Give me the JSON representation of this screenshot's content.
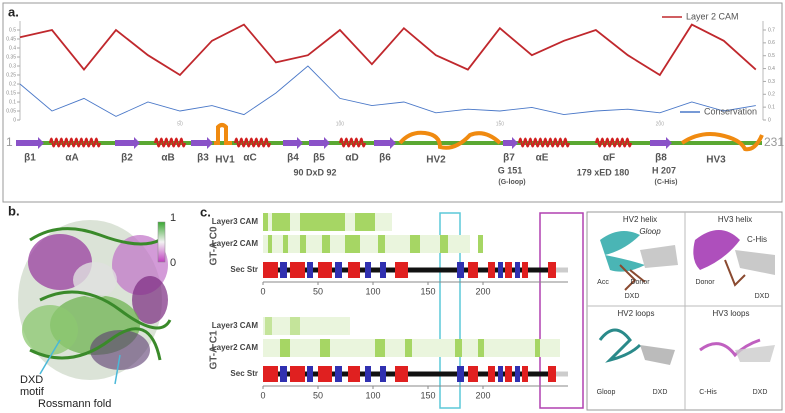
{
  "chart_data": [
    {
      "type": "line",
      "panel_label": "a.",
      "x": [
        0,
        10,
        20,
        30,
        40,
        50,
        60,
        70,
        80,
        90,
        100,
        110,
        120,
        130,
        140,
        150,
        160,
        170,
        180,
        190,
        200,
        210,
        220,
        230
      ],
      "xlim": [
        0,
        231
      ],
      "xticks": [
        50,
        100,
        150,
        200
      ],
      "ylim": [
        0,
        0.55
      ],
      "yticks": [
        0,
        0.05,
        0.1,
        0.15,
        0.2,
        0.25,
        0.3,
        0.35,
        0.4,
        0.45,
        0.5
      ],
      "y2lim": [
        0,
        0.77
      ],
      "y2ticks": [
        0,
        0.1,
        0.2,
        0.3,
        0.4,
        0.5,
        0.6,
        0.7
      ],
      "series": [
        {
          "name": "Layer 2 CAM",
          "color": "#c0282d",
          "values": [
            0.46,
            0.5,
            0.28,
            0.5,
            0.36,
            0.25,
            0.44,
            0.53,
            0.32,
            0.36,
            0.5,
            0.31,
            0.51,
            0.36,
            0.28,
            0.51,
            0.36,
            0.44,
            0.5,
            0.36,
            0.25,
            0.53,
            0.44,
            0.28
          ]
        },
        {
          "name": "Conservation",
          "color": "#4a78c8",
          "values": [
            0.2,
            0.05,
            0.12,
            0.02,
            0.1,
            0.05,
            0.08,
            0.03,
            0.15,
            0.3,
            0.12,
            0.08,
            0.1,
            0.04,
            0.06,
            0.05,
            0.07,
            0.03,
            0.05,
            0.06,
            0.04,
            0.1,
            0.05,
            0.08
          ]
        }
      ]
    }
  ],
  "panel_a": {
    "start": 1,
    "end": 231,
    "structure": [
      "β1",
      "αA",
      "β2",
      "αB",
      "β3",
      "HV1",
      "αC",
      "β4",
      "β5",
      "αD",
      "β6",
      "HV2",
      "β7",
      "αE",
      "αF",
      "β8",
      "HV3"
    ],
    "motifs": [
      "90 DxD 92",
      "G 151",
      "(G-loop)",
      "179 xED 180",
      "H 207",
      "(C-His)"
    ]
  },
  "panel_b": {
    "label": "b.",
    "colorbar": {
      "max": 1,
      "min": 0
    },
    "annotations": [
      "DXD",
      "motif",
      "Rossmann fold"
    ]
  },
  "panel_c": {
    "label": "c.",
    "xticks": [
      0,
      50,
      100,
      150,
      200
    ],
    "groups": [
      {
        "name": "GT-A C0",
        "rows": [
          "Layer3 CAM",
          "Layer2 CAM",
          "Sec Str"
        ]
      },
      {
        "name": "GT-A C1",
        "rows": [
          "Layer3 CAM",
          "Layer2 CAM",
          "Sec Str"
        ]
      }
    ]
  },
  "panel_d": {
    "panels": [
      {
        "title": "HV2 helix",
        "labels": [
          "Gloop",
          "Acc",
          "Donor",
          "DXD"
        ]
      },
      {
        "title": "HV3 helix",
        "labels": [
          "C-His",
          "Donor",
          "DXD"
        ]
      },
      {
        "title": "HV2 loops",
        "labels": [
          "Gloop",
          "DXD"
        ]
      },
      {
        "title": "HV3 loops",
        "labels": [
          "C-His",
          "DXD"
        ]
      }
    ]
  }
}
